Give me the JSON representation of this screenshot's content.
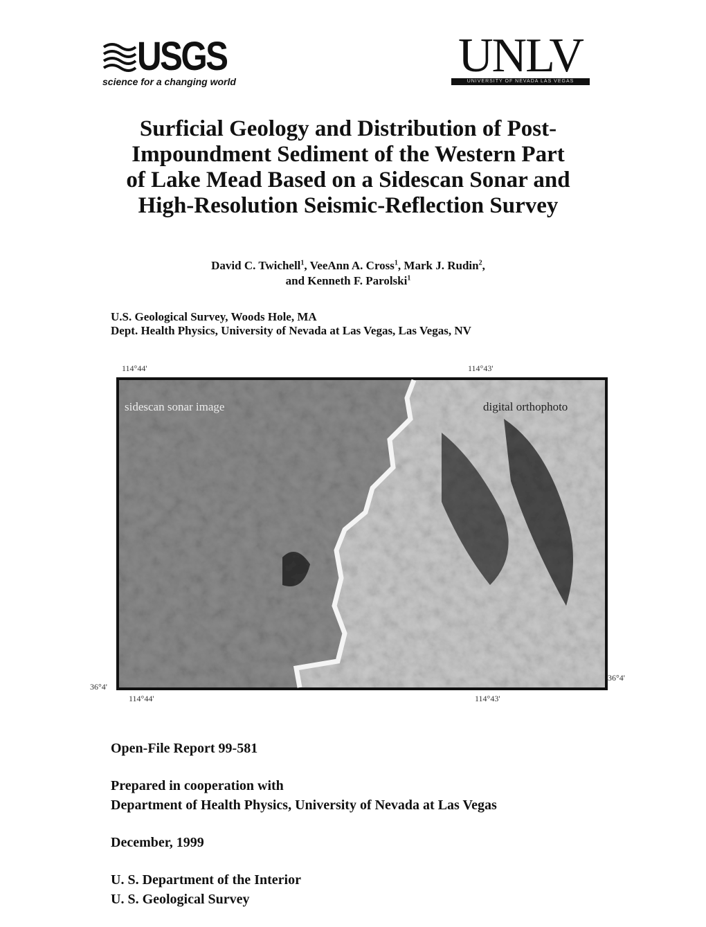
{
  "header": {
    "usgs": {
      "wordmark": "USGS",
      "tagline": "science for a changing world"
    },
    "unlv": {
      "wordmark": "UNLV",
      "tagline": "UNIVERSITY OF NEVADA LAS VEGAS"
    }
  },
  "title_lines": [
    "Surficial Geology and Distribution of Post-",
    "Impoundment Sediment of the Western Part",
    "of Lake Mead Based on a Sidescan Sonar and",
    "High-Resolution Seismic-Reflection Survey"
  ],
  "author_lines": [
    [
      {
        "text": "David C. Twichell",
        "sup": "1"
      },
      {
        "text": ", VeeAnn A. Cross",
        "sup": "1"
      },
      {
        "text": ", Mark J. Rudin",
        "sup": "2"
      },
      {
        "text": ","
      }
    ],
    [
      {
        "text": "and Kenneth F. Parolski",
        "sup": "1"
      }
    ]
  ],
  "affiliations": [
    "U.S. Geological Survey, Woods Hole, MA",
    "Dept. Health Physics, University of Nevada at Las Vegas, Las Vegas, NV"
  ],
  "figure": {
    "top_labels": [
      "114°44'",
      "114°43'"
    ],
    "bottom_labels": [
      "114°44'",
      "114°43'"
    ],
    "left_label": "36°4'",
    "right_label": "36°4'",
    "left_caption": "sidescan sonar image",
    "right_caption": "digital orthophoto"
  },
  "report": "Open-File Report 99-581",
  "cooperation": [
    "Prepared in cooperation with",
    "Department of Health Physics, University of Nevada at Las Vegas"
  ],
  "date": "December, 1999",
  "agencies": [
    "U. S. Department of the Interior",
    "U. S. Geological Survey"
  ]
}
